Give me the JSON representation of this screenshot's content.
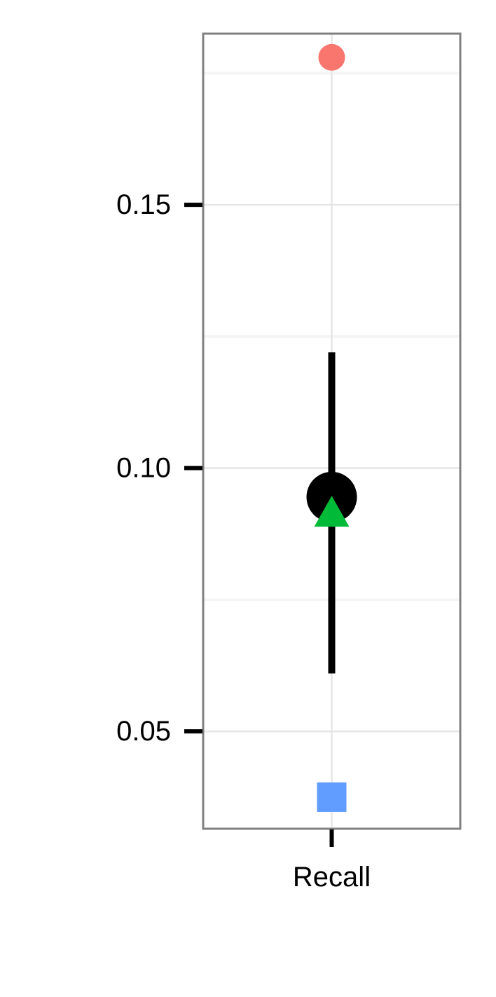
{
  "chart_data": {
    "type": "scatter",
    "title": "",
    "xlabel": "",
    "ylabel": "",
    "categories": [
      "Recall"
    ],
    "ylim": [
      0.0315,
      0.1825
    ],
    "y_ticks": [
      {
        "value": 0.05,
        "label": "0.05"
      },
      {
        "value": 0.1,
        "label": "0.10"
      },
      {
        "value": 0.15,
        "label": "0.15"
      }
    ],
    "y_minor_gridlines": [
      0.075,
      0.125,
      0.175
    ],
    "grid": true,
    "legend": "none",
    "points": [
      {
        "category": "Recall",
        "y": 0.178,
        "shape": "circle",
        "color": "#F8766D"
      },
      {
        "category": "Recall",
        "y": 0.0945,
        "shape": "circle",
        "color": "#000000",
        "size": "large"
      },
      {
        "category": "Recall",
        "y": 0.0915,
        "shape": "triangle",
        "color": "#00BA38"
      },
      {
        "category": "Recall",
        "y": 0.0375,
        "shape": "square",
        "color": "#619CFF"
      }
    ],
    "error_bars": [
      {
        "category": "Recall",
        "low": 0.061,
        "high": 0.122,
        "color": "#000000"
      }
    ],
    "colors": {
      "panel_border": "#808080",
      "major_grid": "#e6e6e6",
      "minor_grid": "#f5f5f5",
      "tick": "#000000",
      "text": "#000000"
    }
  }
}
